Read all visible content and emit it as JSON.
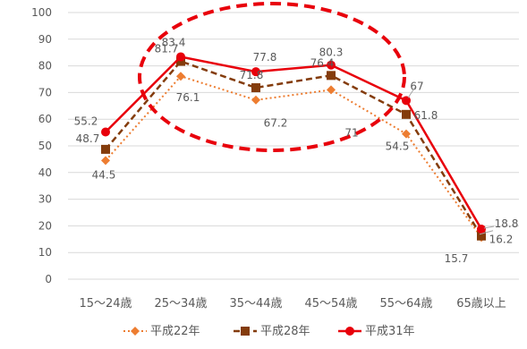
{
  "chart_data": {
    "type": "line",
    "categories": [
      "15～24歳",
      "25～34歳",
      "35～44歳",
      "45～54歳",
      "55～64歳",
      "65歳以上"
    ],
    "ylim": [
      0,
      100
    ],
    "yticks": [
      0,
      10,
      20,
      30,
      40,
      50,
      60,
      70,
      80,
      90,
      100
    ],
    "grid": true,
    "legend": "bottom",
    "series": [
      {
        "name": "平成22年",
        "values": [
          44.5,
          76.1,
          67.2,
          71,
          54.5,
          15.7
        ],
        "labels": [
          "44.5",
          "76.1",
          "67.2",
          "71",
          "54.5",
          "15.7"
        ],
        "color": "#ED7D31",
        "style": "dotted",
        "marker": "diamond"
      },
      {
        "name": "平成28年",
        "values": [
          48.7,
          81.7,
          71.8,
          76.4,
          61.8,
          16.2
        ],
        "labels": [
          "48.7",
          "81.7",
          "71.8",
          "76.4",
          "61.8",
          "16.2"
        ],
        "color": "#843C0C",
        "style": "dashed",
        "marker": "square"
      },
      {
        "name": "平成31年",
        "values": [
          55.2,
          83.4,
          77.8,
          80.3,
          67,
          18.8
        ],
        "labels": [
          "55.2",
          "83.4",
          "77.8",
          "80.3",
          "67",
          "18.8"
        ],
        "color": "#E8000B",
        "style": "solid",
        "marker": "circle"
      }
    ],
    "annotation": {
      "shape": "dashed-ellipse",
      "color": "#E8000B",
      "highlights": [
        "25～34歳",
        "35～44歳",
        "45～54歳"
      ]
    }
  }
}
